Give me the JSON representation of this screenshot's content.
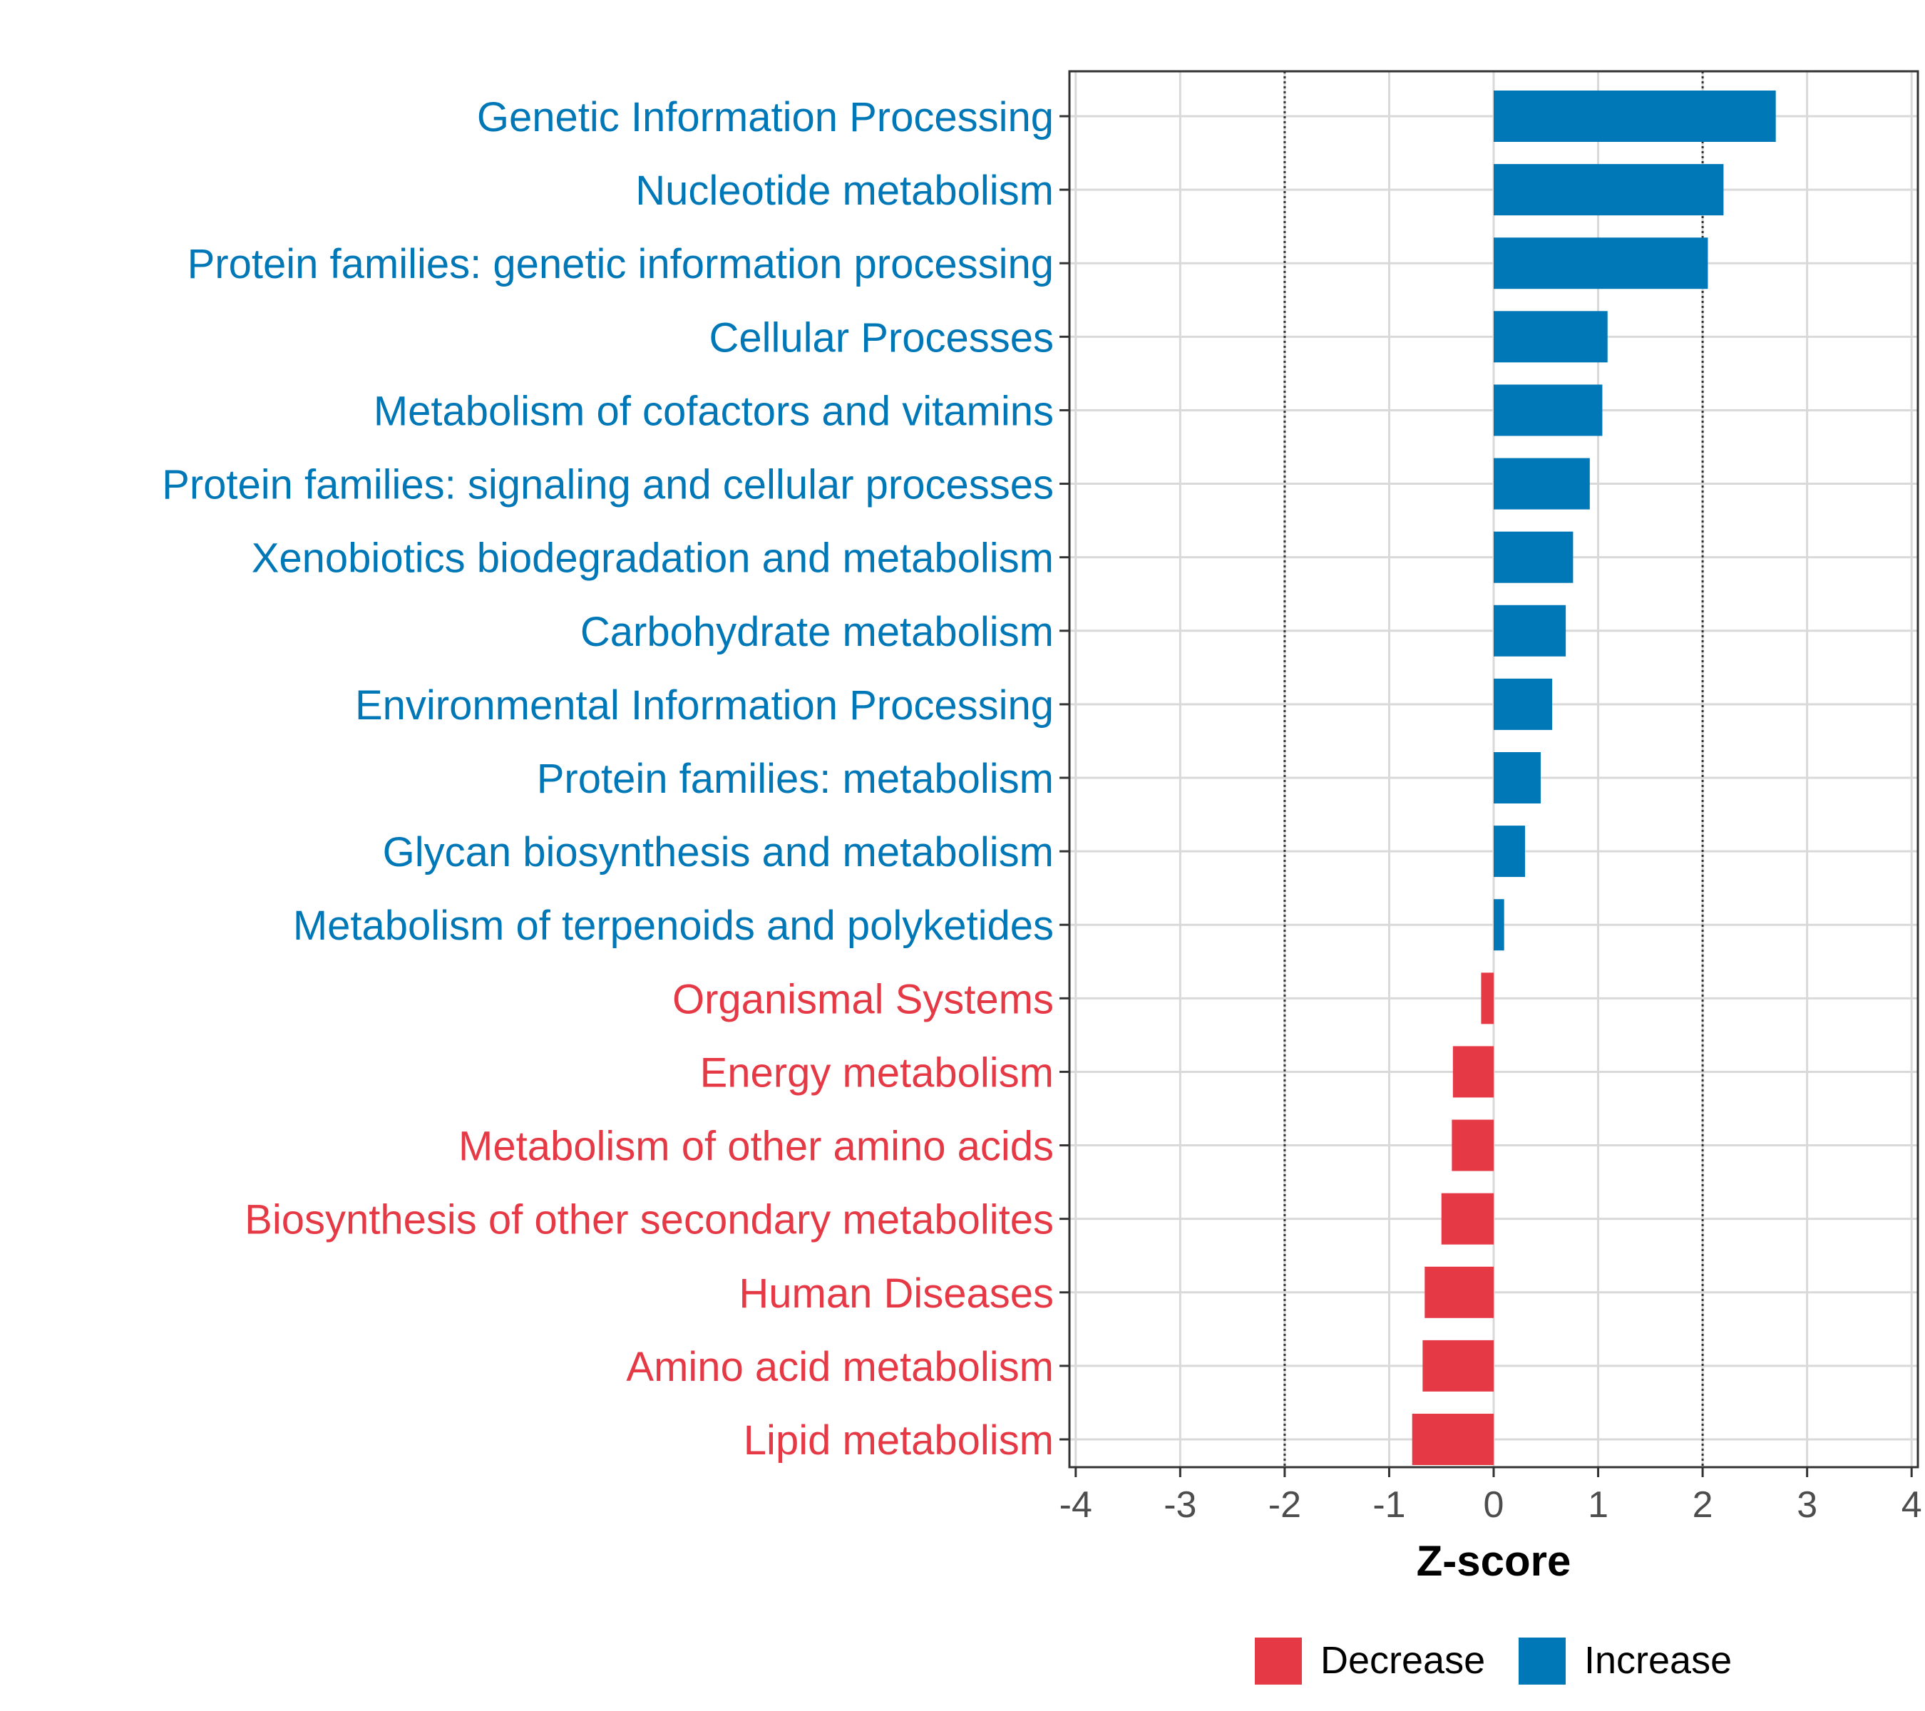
{
  "chart_data": {
    "type": "bar",
    "orientation": "horizontal",
    "title": "",
    "xlabel": "Z-score",
    "ylabel": "",
    "xlim": [
      -4,
      4
    ],
    "xticks": [
      -4,
      -3,
      -2,
      -1,
      0,
      1,
      2,
      3,
      4
    ],
    "xtick_labels": [
      "-4",
      "-3",
      "-2",
      "-1",
      "0",
      "1",
      "2",
      "3",
      "4"
    ],
    "reference_lines": [
      -2,
      2
    ],
    "grid": true,
    "legend_position": "bottom",
    "categories": [
      "Genetic Information Processing",
      "Nucleotide metabolism",
      "Protein families: genetic information processing",
      "Cellular Processes",
      "Metabolism of cofactors and vitamins",
      "Protein families: signaling and cellular processes",
      "Xenobiotics biodegradation and metabolism",
      "Carbohydrate metabolism",
      "Environmental Information Processing",
      "Protein families: metabolism",
      "Glycan biosynthesis and metabolism",
      "Metabolism of terpenoids and polyketides",
      "Organismal Systems",
      "Energy metabolism",
      "Metabolism of other amino acids",
      "Biosynthesis of other secondary metabolites",
      "Human Diseases",
      "Amino acid metabolism",
      "Lipid metabolism"
    ],
    "values": [
      2.7,
      2.2,
      2.05,
      1.09,
      1.04,
      0.92,
      0.76,
      0.69,
      0.56,
      0.45,
      0.3,
      0.1,
      -0.12,
      -0.39,
      -0.4,
      -0.5,
      -0.66,
      -0.68,
      -0.78
    ],
    "groups": [
      "Increase",
      "Increase",
      "Increase",
      "Increase",
      "Increase",
      "Increase",
      "Increase",
      "Increase",
      "Increase",
      "Increase",
      "Increase",
      "Increase",
      "Decrease",
      "Decrease",
      "Decrease",
      "Decrease",
      "Decrease",
      "Decrease",
      "Decrease"
    ],
    "legend": [
      {
        "name": "Decrease",
        "color": "#e63946"
      },
      {
        "name": "Increase",
        "color": "#0077b6"
      }
    ]
  },
  "colors": {
    "increase": "#0077b6",
    "decrease": "#e63946",
    "grid": "#d9d9d9",
    "axis": "#333333",
    "tick_text": "#4d4d4d"
  }
}
